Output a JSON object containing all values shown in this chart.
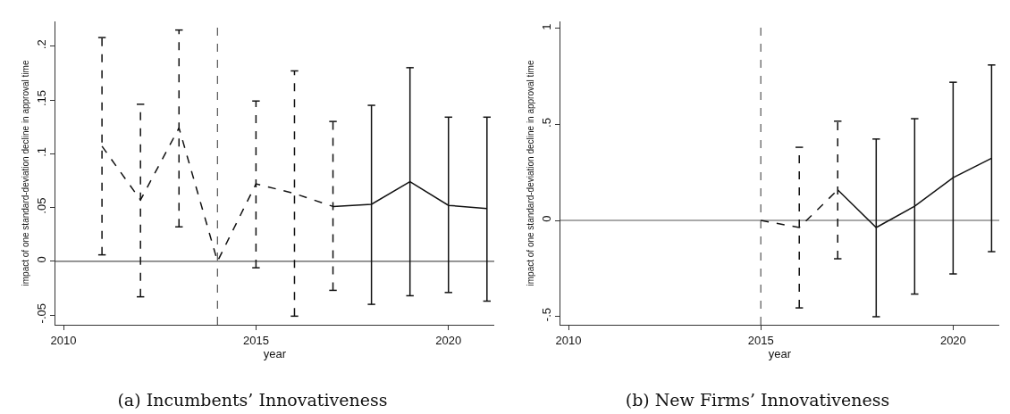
{
  "chart_data": [
    {
      "type": "line",
      "title": "(a) Incumbents’ Innovativeness",
      "xlabel": "year",
      "ylabel": "impact of one standard-deviation decline in approval time",
      "xlim": [
        2009.79,
        2021.19
      ],
      "xticks": [
        2010,
        2015,
        2020
      ],
      "ylim": [
        -0.059,
        0.223
      ],
      "yticks": [
        {
          "value": -0.05,
          "label": "-.05"
        },
        {
          "value": 0,
          "label": "0"
        },
        {
          "value": 0.05,
          "label": ".05"
        },
        {
          "value": 0.1,
          "label": ".1"
        },
        {
          "value": 0.15,
          "label": ".15"
        },
        {
          "value": 0.2,
          "label": ".2"
        }
      ],
      "grid": false,
      "marker": "none",
      "ref_lines": [
        {
          "axis": "x",
          "value": 2014,
          "line_style": "dashed",
          "color": "#555555"
        },
        {
          "axis": "y",
          "value": 0,
          "line_style": "solid",
          "color": "#555555"
        }
      ],
      "series": [
        {
          "line_style": "dashed",
          "color": "#111111",
          "x": [
            2011,
            2012,
            2013,
            2014,
            2015,
            2016,
            2017
          ],
          "values": [
            0.107,
            0.057,
            0.124,
            0,
            0.072,
            0.063,
            0.051
          ],
          "errors": [
            [
              0.006,
              0.208
            ],
            [
              -0.033,
              0.146
            ],
            [
              0.032,
              0.215
            ],
            null,
            [
              -0.006,
              0.149
            ],
            [
              -0.051,
              0.177
            ],
            [
              -0.027,
              0.13
            ]
          ]
        },
        {
          "line_style": "solid",
          "color": "#111111",
          "x": [
            2017,
            2018,
            2019,
            2020,
            2021
          ],
          "values": [
            0.051,
            0.053,
            0.074,
            0.052,
            0.049
          ],
          "errors": [
            null,
            [
              -0.04,
              0.145
            ],
            [
              -0.032,
              0.18
            ],
            [
              -0.029,
              0.134
            ],
            [
              -0.037,
              0.134
            ]
          ]
        }
      ]
    },
    {
      "type": "line",
      "title": "(b) New Firms’ Innovativeness",
      "xlabel": "year",
      "ylabel": "impact of one standard-deviation decline in approval time",
      "xlim": [
        2009.79,
        2021.2
      ],
      "xticks": [
        2010,
        2015,
        2020
      ],
      "ylim": [
        -0.544,
        1.037
      ],
      "yticks": [
        {
          "value": -0.5,
          "label": "-.5"
        },
        {
          "value": 0,
          "label": "0"
        },
        {
          "value": 0.5,
          "label": ".5"
        },
        {
          "value": 1,
          "label": "1"
        }
      ],
      "grid": false,
      "marker": "none",
      "ref_lines": [
        {
          "axis": "x",
          "value": 2015,
          "line_style": "dashed",
          "color": "#555555"
        },
        {
          "axis": "y",
          "value": 0,
          "line_style": "solid",
          "color": "#555555"
        }
      ],
      "series": [
        {
          "line_style": "dashed",
          "color": "#111111",
          "x": [
            2015,
            2016,
            2017
          ],
          "values": [
            0,
            -0.037,
            0.159
          ],
          "errors": [
            null,
            [
              -0.456,
              0.381
            ],
            [
              -0.2,
              0.517
            ]
          ]
        },
        {
          "line_style": "solid",
          "color": "#111111",
          "x": [
            2017,
            2018,
            2019,
            2020,
            2021
          ],
          "values": [
            0.159,
            -0.037,
            0.074,
            0.223,
            0.324
          ],
          "errors": [
            null,
            [
              -0.502,
              0.424
            ],
            [
              -0.384,
              0.53
            ],
            [
              -0.279,
              0.72
            ],
            [
              -0.163,
              0.81
            ]
          ]
        }
      ]
    }
  ]
}
